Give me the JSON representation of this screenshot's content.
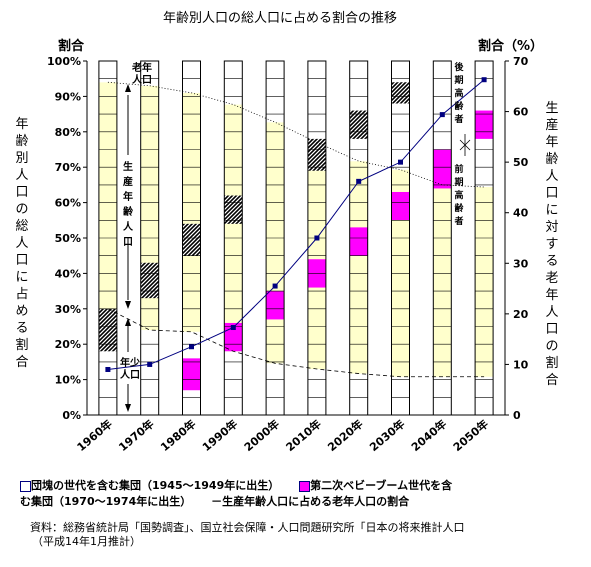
{
  "chart_data": {
    "type": "bar",
    "title": "年齢別人口の総人口に占める割合の推移",
    "categories": [
      "1960年",
      "1970年",
      "1980年",
      "1990年",
      "2000年",
      "2010年",
      "2020年",
      "2030年",
      "2040年",
      "2050年"
    ],
    "left_axis": {
      "header": "割合",
      "title": "年齢別人口の総人口に占める割合",
      "ylim": [
        0,
        100
      ],
      "ticks": [
        "0%",
        "10%",
        "20%",
        "30%",
        "40%",
        "50%",
        "60%",
        "70%",
        "80%",
        "90%",
        "100%"
      ]
    },
    "right_axis": {
      "header": "割合（%）",
      "title": "生産年齢人口に対する老年人口の割合",
      "ylim": [
        0,
        70
      ],
      "ticks": [
        "0",
        "10",
        "20",
        "30",
        "40",
        "50",
        "60",
        "70"
      ]
    },
    "series": [
      {
        "name": "年少人口",
        "values": [
          30,
          24,
          23.5,
          18,
          14.6,
          13,
          11.7,
          10.8,
          10.8,
          10.8
        ]
      },
      {
        "name": "生産年齢人口",
        "values": [
          64,
          69,
          67.5,
          69.7,
          68.1,
          64,
          60,
          58.5,
          54.2,
          53.6
        ]
      },
      {
        "name": "老年人口",
        "values": [
          6,
          7,
          9,
          12.3,
          17.3,
          23,
          28.3,
          30.7,
          35,
          35.6
        ]
      }
    ],
    "highlight_bands": [
      {
        "name": "団塊の世代を含む集団（1945～1949年に出生）",
        "color": "#333333",
        "bands": [
          [
            18,
            30
          ],
          [
            33,
            43
          ],
          [
            45,
            54
          ],
          [
            54,
            62
          ],
          [
            null,
            null
          ],
          [
            69,
            78
          ],
          [
            78,
            86
          ],
          [
            88,
            94
          ],
          [
            null,
            null
          ],
          [
            null,
            null
          ]
        ]
      },
      {
        "name": "第二次ベビーブーム世代を含む集団（1970～1974年に出生）",
        "color": "#ff00ff",
        "bands": [
          [
            null,
            null
          ],
          [
            null,
            null
          ],
          [
            7,
            16
          ],
          [
            18,
            26
          ],
          [
            27,
            35
          ],
          [
            36,
            44
          ],
          [
            45,
            53
          ],
          [
            55,
            63
          ],
          [
            64,
            75
          ],
          [
            78,
            86
          ]
        ]
      }
    ],
    "line": {
      "name": "生産年齢人口に占める老年人口の割合",
      "axis": "right",
      "values": [
        9.0,
        10.0,
        13.5,
        17.3,
        25.5,
        35.0,
        46.2,
        50.0,
        59.4,
        66.3
      ]
    },
    "annotations": {
      "elderly": "老年人口",
      "working": "生産年齢人口",
      "young": "年少人口",
      "late_elderly": "後期高齢者",
      "early_elderly": "前期高齢者"
    },
    "legend": {
      "item1": "団塊の世代を含む集団（1945～1949年に出生）",
      "item2a": "第二次ベビーブーム世代を含",
      "item2b": "む集団（1970～1974年に出生）",
      "item3": "－生産年齢人口に占める老年人口の割合"
    },
    "source": {
      "line1": "資料：総務省統計局「国勢調査」、国立社会保障・人口問題研究所「日本の将来推計人口",
      "line2": "（平成14年1月推計）"
    },
    "colors": {
      "working": "#ffffcc",
      "young": "#ffffff",
      "elderly": "#ffffff",
      "line": "#000080",
      "dotted": "#000000"
    }
  }
}
